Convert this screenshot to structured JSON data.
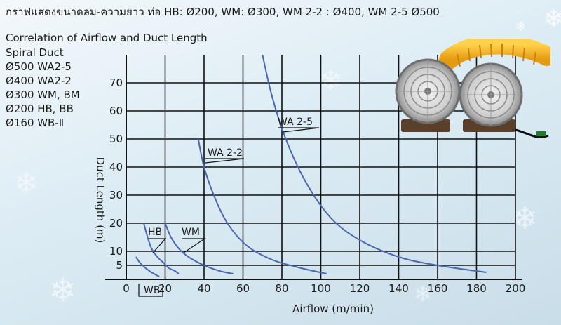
{
  "thai_title": "กราฟแสดงขนาดลม-ความยาว ท่อ HB: Ø200, WM: Ø300, WM 2-2 : Ø400, WM 2-5 Ø500",
  "colors": {
    "curve": "#4a67b0",
    "grid": "#111111",
    "background": "#dcecf4"
  },
  "legend": {
    "heading": "Spiral Duct",
    "items": [
      "Ø500 WA2-5",
      "Ø400 WA2-2",
      "Ø300 WM, BM",
      "Ø200 HB, BB",
      "Ø160  WB-Ⅱ"
    ]
  },
  "product_image": {
    "icon": "portable-fan-with-yellow-duct-icon"
  },
  "chart_data": {
    "type": "line",
    "title": "Correlation of Airflow and Duct Length",
    "xlabel": "Airflow (m/min)",
    "ylabel": "Duct Length (m)",
    "xlim": [
      0,
      200
    ],
    "ylim": [
      0,
      80
    ],
    "x_ticks": [
      0,
      20,
      40,
      60,
      80,
      100,
      120,
      140,
      160,
      180,
      200
    ],
    "y_ticks": [
      5,
      10,
      20,
      30,
      40,
      50,
      60,
      70
    ],
    "grid": true,
    "series": [
      {
        "name": "WB",
        "points": [
          [
            5,
            8
          ],
          [
            7,
            6
          ],
          [
            10,
            4
          ],
          [
            13,
            2.5
          ],
          [
            17,
            1
          ]
        ]
      },
      {
        "name": "HB",
        "points": [
          [
            9,
            20
          ],
          [
            11,
            15
          ],
          [
            13,
            11
          ],
          [
            16,
            8
          ],
          [
            19,
            6
          ],
          [
            22,
            4
          ],
          [
            25,
            3
          ],
          [
            27,
            2
          ]
        ]
      },
      {
        "name": "WM",
        "points": [
          [
            20,
            20
          ],
          [
            23,
            15
          ],
          [
            27,
            11
          ],
          [
            32,
            8
          ],
          [
            40,
            5
          ],
          [
            48,
            3
          ],
          [
            55,
            2
          ]
        ]
      },
      {
        "name": "WA 2-2",
        "points": [
          [
            37,
            50
          ],
          [
            40,
            40
          ],
          [
            45,
            30
          ],
          [
            52,
            20
          ],
          [
            62,
            12
          ],
          [
            75,
            7
          ],
          [
            90,
            4
          ],
          [
            103,
            2
          ]
        ]
      },
      {
        "name": "WA 2-5",
        "points": [
          [
            70,
            80
          ],
          [
            75,
            65
          ],
          [
            82,
            50
          ],
          [
            92,
            35
          ],
          [
            105,
            22
          ],
          [
            120,
            14
          ],
          [
            140,
            8
          ],
          [
            160,
            5
          ],
          [
            185,
            2.5
          ]
        ]
      }
    ],
    "annotations": [
      "WB",
      "HB",
      "WM",
      "WA 2-2",
      "WA 2-5"
    ]
  }
}
